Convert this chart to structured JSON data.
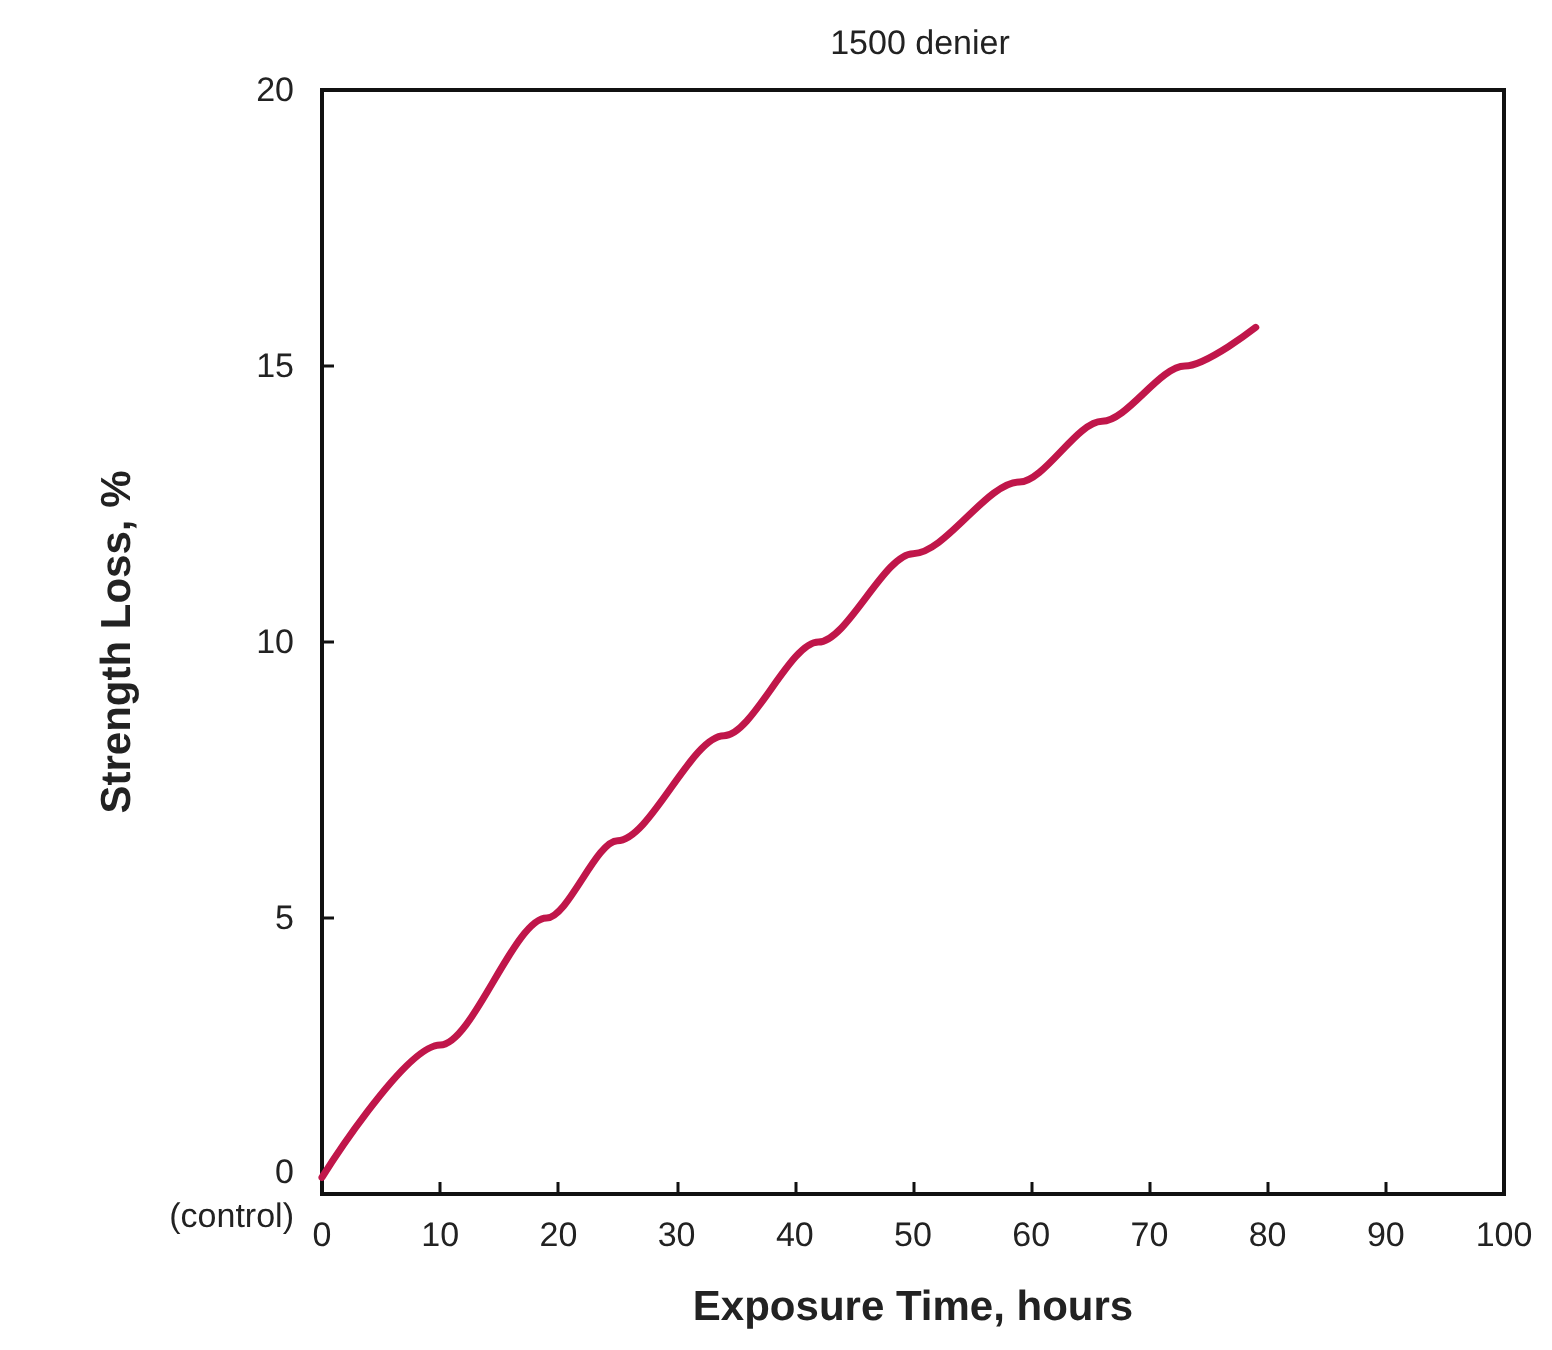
{
  "chart_data": {
    "type": "line",
    "title": "1500 denier",
    "xlabel": "Exposure Time, hours",
    "ylabel": "Strength Loss, %",
    "x": [
      0,
      10,
      19,
      25,
      34,
      42,
      50,
      59,
      66,
      73,
      79
    ],
    "series": [
      {
        "color": "#c0164a",
        "values": [
          0.3,
          2.7,
          5,
          6.4,
          8.3,
          10,
          11.6,
          12.9,
          14,
          15,
          15.7
        ]
      }
    ],
    "xlim": [
      0,
      100
    ],
    "xticks": [
      0,
      10,
      20,
      30,
      40,
      50,
      60,
      70,
      80,
      90,
      100
    ],
    "ylim": [
      0,
      20
    ],
    "yticks": [
      {
        "value": 0,
        "label": "0\n(control)"
      },
      5,
      10,
      15,
      20
    ],
    "grid": false,
    "marker": "none",
    "line_style": "solid"
  }
}
